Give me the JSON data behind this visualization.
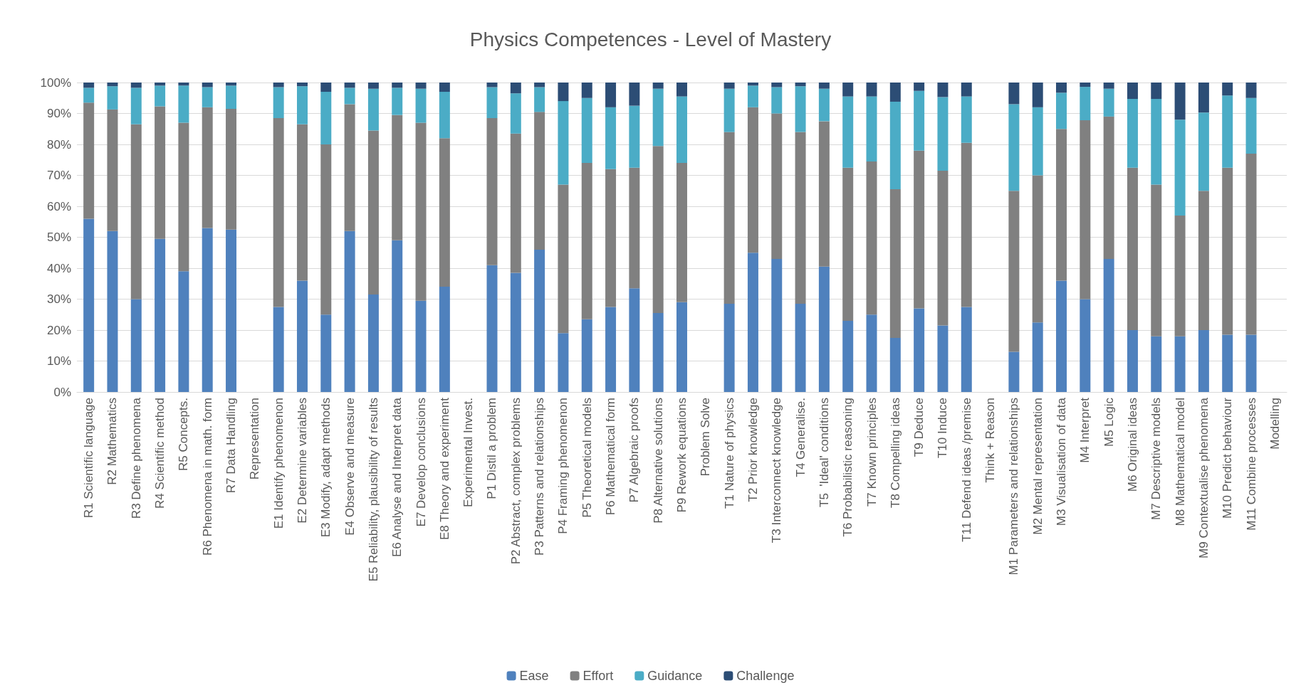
{
  "chart_data": {
    "type": "bar",
    "stacked": true,
    "title": "Physics Competences - Level of Mastery",
    "categories": [
      "R1 Scientific language",
      "R2 Mathematics",
      "R3 Define phenomena",
      "R4 Scientific method",
      "R5 Concepts.",
      "R6 Phenomena in math. form",
      "R7 Data Handling",
      "Representation",
      "E1 Identify phenomenon",
      "E2 Determine variables",
      "E3 Modify, adapt methods",
      "E4 Observe and measure",
      "E5 Reliability, plausibility of results",
      "E6 Analyse and Interpret data",
      "E7 Develop conclusions",
      "E8 Theory and experiment",
      "Experimental Invest.",
      "P1 Distil a problem",
      "P2 Abstract, complex problems",
      "P3 Patterns and relationships",
      "P4 Framing phenomenon",
      "P5 Theoretical models",
      "P6 Mathematical form",
      "P7 Algebraic proofs",
      "P8 Alternative solutions",
      "P9 Rework equations",
      "Problem Solve",
      "T1 Nature of physics",
      "T2 Prior knowledge",
      "T3 Interconnect knowledge",
      "T4 Generalise.",
      "T5  'Ideal' conditions",
      "T6 Probabilistic reasoning",
      "T7 Known principles",
      "T8 Compelling ideas",
      "T9 Deduce",
      "T10 Induce",
      "T11 Defend ideas /premise",
      "Think + Reason",
      "M1 Parameters and relationships",
      "M2 Mental representation",
      "M3 Visualisation of data",
      "M4 Interpret",
      "M5 Logic",
      "M6 Original ideas",
      "M7 Descriptive models",
      "M8 Mathematical model",
      "M9 Contextualise phenomena",
      "M10 Predict behaviour",
      "M11 Combine processes",
      "Modelling"
    ],
    "series": [
      {
        "name": "Ease",
        "color": "#4f81bd",
        "values": [
          56,
          52,
          30,
          49.5,
          39,
          53,
          52.5,
          null,
          27.5,
          36,
          25,
          52,
          31.5,
          49,
          29.5,
          34,
          null,
          41,
          38.5,
          46,
          19,
          23.5,
          27.5,
          33.5,
          25.5,
          29,
          null,
          28.5,
          45,
          43,
          28.5,
          40.5,
          23,
          25,
          17.5,
          27,
          21.5,
          27.5,
          null,
          13,
          22.5,
          36,
          30,
          43,
          20,
          18,
          18,
          20,
          18.5,
          18.5,
          null
        ]
      },
      {
        "name": "Effort",
        "color": "#808080",
        "values": [
          37.5,
          39.3,
          56.5,
          42.8,
          48,
          39,
          39,
          null,
          61,
          50.5,
          55,
          41,
          53,
          40.5,
          57.5,
          48,
          null,
          47.5,
          45,
          44.5,
          48,
          50.5,
          44.5,
          39,
          54,
          45,
          null,
          55.5,
          47,
          47,
          55.5,
          47,
          49.5,
          49.5,
          48,
          51,
          50,
          53,
          null,
          52,
          47.5,
          49,
          57.8,
          46,
          52.5,
          49,
          39,
          45,
          54,
          58.5,
          null
        ]
      },
      {
        "name": "Guidance",
        "color": "#4bacc6",
        "values": [
          4.8,
          7.5,
          11.8,
          6.7,
          12,
          6.5,
          7.5,
          null,
          10,
          12.3,
          17,
          5.3,
          13.5,
          8.8,
          11,
          15,
          null,
          10,
          13,
          8,
          27,
          21,
          20,
          20,
          18.5,
          21.5,
          null,
          14,
          7,
          8.5,
          14.8,
          10.5,
          23,
          21,
          28.3,
          19.3,
          23.8,
          15,
          null,
          28,
          22,
          11.7,
          10.8,
          9,
          22.2,
          27.7,
          31,
          25.3,
          23.3,
          18,
          null
        ]
      },
      {
        "name": "Challenge",
        "color": "#2c4d75",
        "values": [
          1.7,
          1.2,
          1.7,
          1,
          1,
          1.5,
          1,
          null,
          1.5,
          1.2,
          3,
          1.7,
          2,
          1.7,
          2,
          3,
          null,
          1.5,
          3.5,
          1.5,
          6,
          5,
          8,
          7.5,
          2,
          4.5,
          null,
          2,
          1,
          1.5,
          1.2,
          2,
          4.5,
          4.5,
          6.2,
          2.7,
          4.7,
          4.5,
          null,
          7,
          8,
          3.3,
          1.4,
          2,
          5.3,
          5.3,
          12,
          9.7,
          4.2,
          5,
          null
        ]
      }
    ],
    "ylim": [
      0,
      100
    ],
    "yticks": [
      {
        "value": 0,
        "label": "0%"
      },
      {
        "value": 10,
        "label": "10%"
      },
      {
        "value": 20,
        "label": "20%"
      },
      {
        "value": 30,
        "label": "30%"
      },
      {
        "value": 40,
        "label": "40%"
      },
      {
        "value": 50,
        "label": "50%"
      },
      {
        "value": 60,
        "label": "60%"
      },
      {
        "value": 70,
        "label": "70%"
      },
      {
        "value": 80,
        "label": "80%"
      },
      {
        "value": 90,
        "label": "90%"
      },
      {
        "value": 100,
        "label": "100%"
      }
    ],
    "grid": "y",
    "legend": "bottom"
  }
}
